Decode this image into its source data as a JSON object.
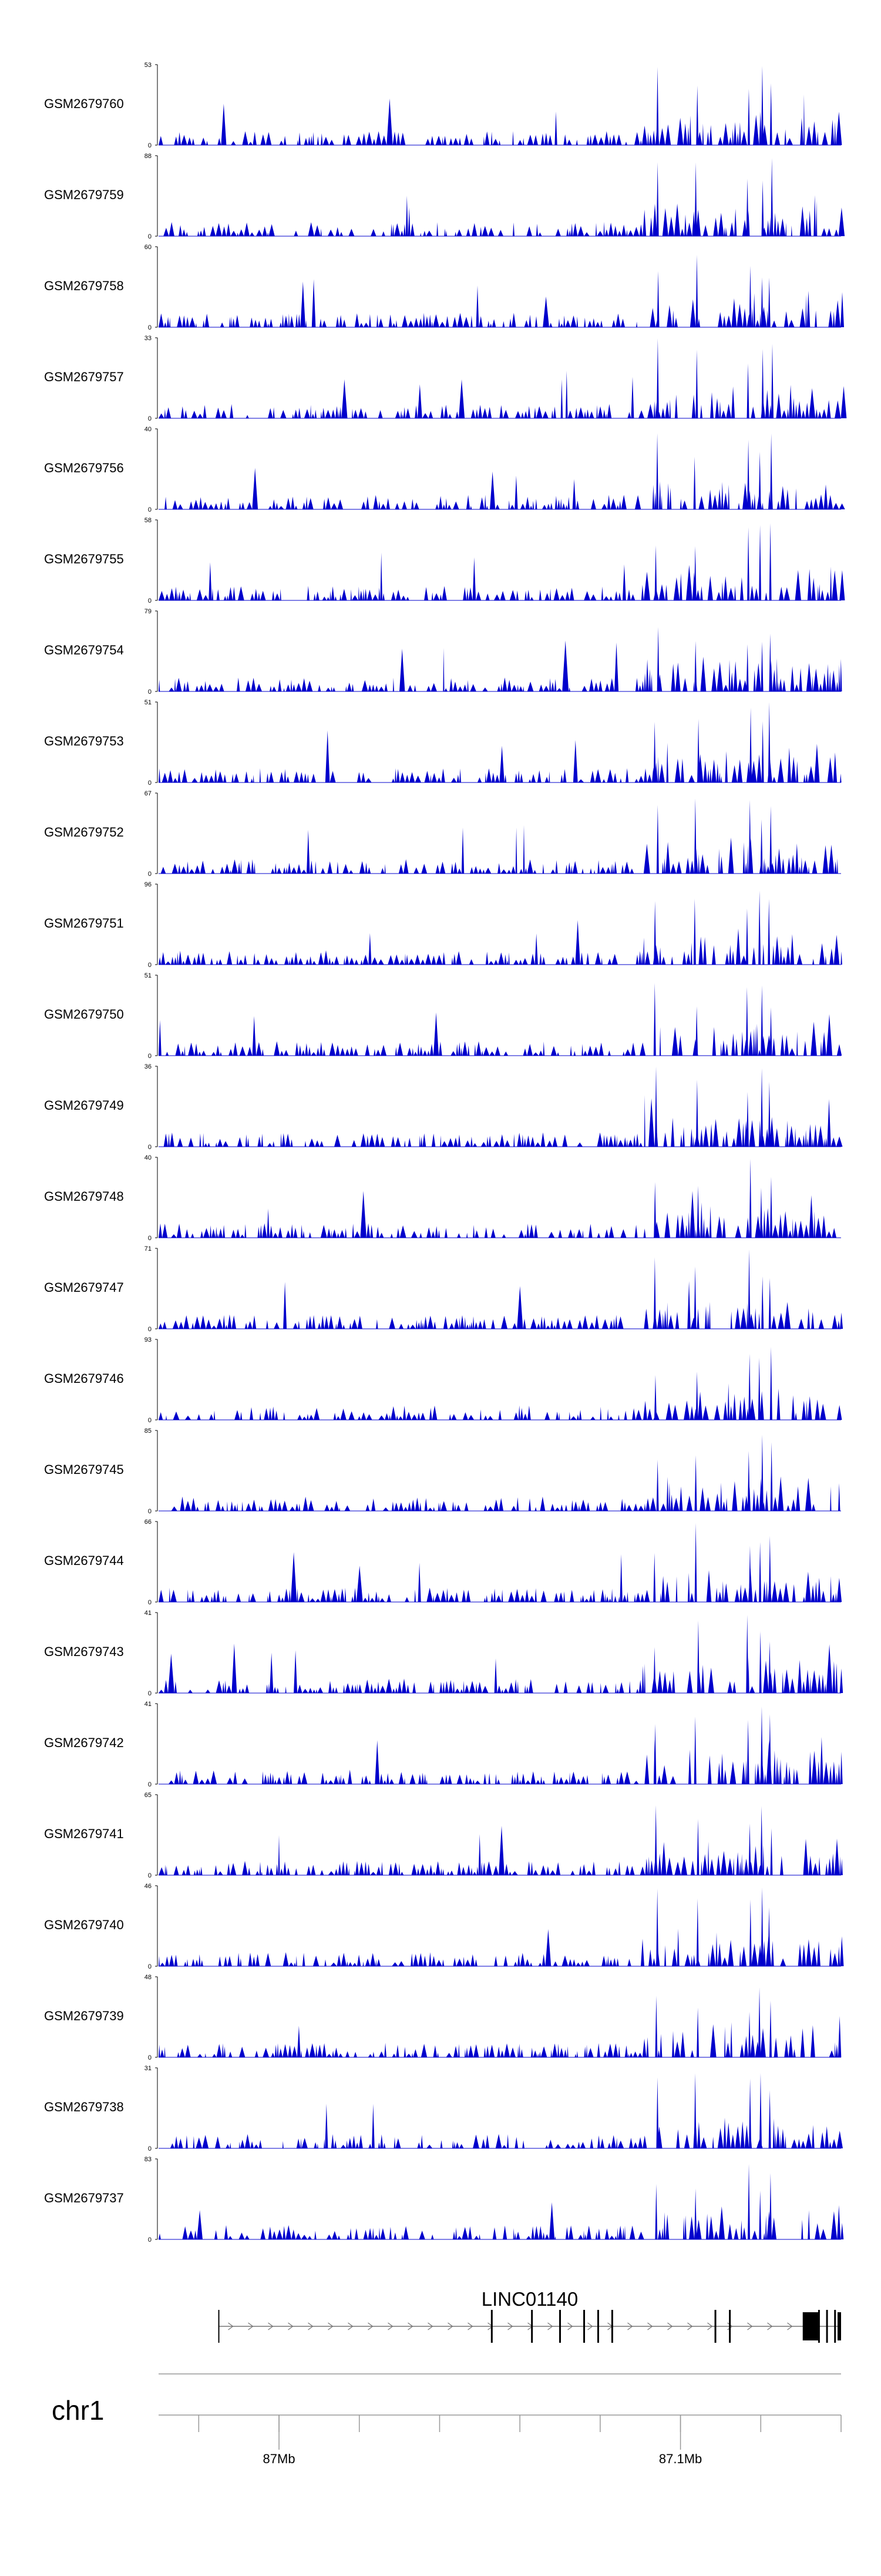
{
  "colors": {
    "signal": "#0000cc",
    "axis": "#000000",
    "ideogram": "#999999",
    "gene": "#000000",
    "intron": "#777777"
  },
  "chart_data": {
    "type": "area",
    "xlim": [
      86.97,
      87.14
    ],
    "x_unit": "Mb",
    "tracks": [
      {
        "name": "GSM2679760",
        "ymin": "0",
        "ymax": "53"
      },
      {
        "name": "GSM2679759",
        "ymin": "0",
        "ymax": "88"
      },
      {
        "name": "GSM2679758",
        "ymin": "0",
        "ymax": "60"
      },
      {
        "name": "GSM2679757",
        "ymin": "0",
        "ymax": "33"
      },
      {
        "name": "GSM2679756",
        "ymin": "0",
        "ymax": "40"
      },
      {
        "name": "GSM2679755",
        "ymin": "0",
        "ymax": "58"
      },
      {
        "name": "GSM2679754",
        "ymin": "0",
        "ymax": "79"
      },
      {
        "name": "GSM2679753",
        "ymin": "0",
        "ymax": "51"
      },
      {
        "name": "GSM2679752",
        "ymin": "0",
        "ymax": "67"
      },
      {
        "name": "GSM2679751",
        "ymin": "0",
        "ymax": "96"
      },
      {
        "name": "GSM2679750",
        "ymin": "0",
        "ymax": "51"
      },
      {
        "name": "GSM2679749",
        "ymin": "0",
        "ymax": "36"
      },
      {
        "name": "GSM2679748",
        "ymin": "0",
        "ymax": "40"
      },
      {
        "name": "GSM2679747",
        "ymin": "0",
        "ymax": "71"
      },
      {
        "name": "GSM2679746",
        "ymin": "0",
        "ymax": "93"
      },
      {
        "name": "GSM2679745",
        "ymin": "0",
        "ymax": "85"
      },
      {
        "name": "GSM2679744",
        "ymin": "0",
        "ymax": "66"
      },
      {
        "name": "GSM2679743",
        "ymin": "0",
        "ymax": "41"
      },
      {
        "name": "GSM2679742",
        "ymin": "0",
        "ymax": "41"
      },
      {
        "name": "GSM2679741",
        "ymin": "0",
        "ymax": "65"
      },
      {
        "name": "GSM2679740",
        "ymin": "0",
        "ymax": "46"
      },
      {
        "name": "GSM2679739",
        "ymin": "0",
        "ymax": "48"
      },
      {
        "name": "GSM2679738",
        "ymin": "0",
        "ymax": "31"
      },
      {
        "name": "GSM2679737",
        "ymin": "0",
        "ymax": "83"
      }
    ],
    "peaks_mb": [
      87.094,
      87.104,
      87.117,
      87.12,
      87.1225
    ],
    "gene": {
      "name": "LINC01140",
      "start_mb": 86.985,
      "end_mb": 87.14,
      "exons_mb": [
        87.053,
        87.063,
        87.07,
        87.076,
        87.0795,
        87.083,
        87.1087,
        87.1123,
        87.1325,
        87.1345,
        87.1365,
        87.1385
      ]
    },
    "chromosome": "chr1",
    "x_ticks": [
      {
        "value": 87.0,
        "label": "87Mb"
      },
      {
        "value": 87.1,
        "label": "87.1Mb"
      }
    ],
    "minor_ticks_mb": [
      86.98,
      87.0,
      87.02,
      87.04,
      87.06,
      87.08,
      87.1,
      87.12,
      87.14
    ]
  }
}
